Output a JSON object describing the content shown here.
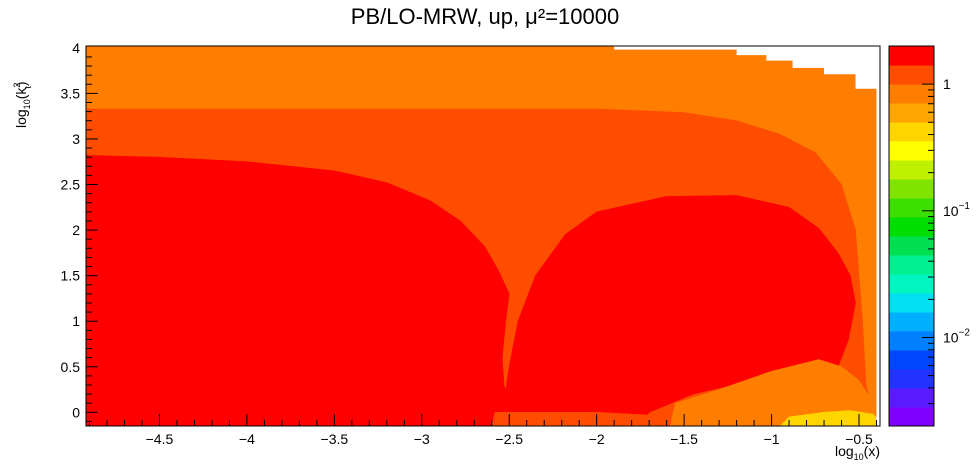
{
  "chart_data": {
    "type": "heatmap",
    "title": "PB/LO-MRW, up, μ²=10000",
    "xlabel_main": "log",
    "xlabel_sub": "10",
    "xlabel_tail": "(x)",
    "ylabel_main": "log",
    "ylabel_sub": "10",
    "ylabel_open": "(k",
    "ylabel_sup": "2",
    "ylabel_subsub": "t",
    "ylabel_close": ")",
    "xlim": [
      -4.92,
      -0.38
    ],
    "ylim": [
      -0.15,
      4.02
    ],
    "x_ticks": [
      {
        "v": -4.5,
        "label": "−4.5"
      },
      {
        "v": -4,
        "label": "−4"
      },
      {
        "v": -3.5,
        "label": "−3.5"
      },
      {
        "v": -3,
        "label": "−3"
      },
      {
        "v": -2.5,
        "label": "−2.5"
      },
      {
        "v": -2,
        "label": "−2"
      },
      {
        "v": -1.5,
        "label": "−1.5"
      },
      {
        "v": -1,
        "label": "−1"
      },
      {
        "v": -0.5,
        "label": "−0.5"
      }
    ],
    "y_ticks": [
      {
        "v": 0,
        "label": "0"
      },
      {
        "v": 0.5,
        "label": "0.5"
      },
      {
        "v": 1,
        "label": "1"
      },
      {
        "v": 1.5,
        "label": "1.5"
      },
      {
        "v": 2,
        "label": "2"
      },
      {
        "v": 2.5,
        "label": "2.5"
      },
      {
        "v": 3,
        "label": "3"
      },
      {
        "v": 3.5,
        "label": "3.5"
      },
      {
        "v": 4,
        "label": "4"
      }
    ],
    "colorbar": {
      "scale": "log",
      "range": [
        0.002,
        2.0
      ],
      "ticks": [
        {
          "v": 1,
          "base": "1",
          "exp": ""
        },
        {
          "v": 0.1,
          "base": "10",
          "exp": "−1"
        },
        {
          "v": 0.01,
          "base": "10",
          "exp": "−2"
        }
      ],
      "colors": [
        "#7f00ff",
        "#5a1cff",
        "#2233ff",
        "#0046ff",
        "#0080ff",
        "#00b0ff",
        "#00e0f0",
        "#00f5c0",
        "#00f090",
        "#00e050",
        "#00dd00",
        "#3ce000",
        "#80e400",
        "#bff000",
        "#ffff00",
        "#ffd500",
        "#ffa500",
        "#ff7e00",
        "#ff4d00",
        "#ff0000"
      ]
    },
    "contours": [
      {
        "level": "0.003",
        "color": "#1e20ff",
        "points": [
          [
            -1.95,
            4.02
          ],
          [
            -1.95,
            3.96
          ],
          [
            -1.18,
            3.96
          ],
          [
            -1.18,
            3.9
          ],
          [
            -1.0,
            3.9
          ],
          [
            -1.0,
            3.83
          ],
          [
            -0.85,
            3.83
          ],
          [
            -0.85,
            3.76
          ],
          [
            -0.67,
            3.76
          ],
          [
            -0.67,
            3.68
          ],
          [
            -0.5,
            3.68
          ],
          [
            -0.5,
            3.5
          ],
          [
            -0.38,
            3.5
          ],
          [
            -0.38,
            4.02
          ]
        ]
      },
      {
        "level": "0.01",
        "color": "#00b0ff",
        "points": [
          [
            -1.95,
            3.96
          ],
          [
            -1.95,
            3.94
          ],
          [
            -1.2,
            3.94
          ],
          [
            -1.2,
            3.88
          ],
          [
            -1.02,
            3.88
          ],
          [
            -1.02,
            3.81
          ],
          [
            -0.87,
            3.81
          ],
          [
            -0.87,
            3.73
          ],
          [
            -0.69,
            3.73
          ],
          [
            -0.69,
            3.64
          ],
          [
            -0.53,
            3.64
          ],
          [
            -0.5,
            3.48
          ],
          [
            -0.38,
            3.46
          ],
          [
            -0.38,
            4.02
          ],
          [
            -1.95,
            4.02
          ]
        ]
      },
      {
        "level": "0.05",
        "color": "#00dd00",
        "points": [
          [
            -4.92,
            3.96
          ],
          [
            -1.98,
            3.96
          ],
          [
            -1.92,
            3.92
          ],
          [
            -1.25,
            3.92
          ],
          [
            -1.05,
            3.86
          ],
          [
            -0.9,
            3.78
          ],
          [
            -0.72,
            3.7
          ],
          [
            -0.57,
            3.58
          ],
          [
            -0.5,
            3.42
          ],
          [
            -0.38,
            3.4
          ],
          [
            -0.38,
            4.02
          ],
          [
            -4.92,
            4.02
          ]
        ]
      },
      {
        "level": "0.1",
        "color": "#bff000",
        "points": [
          [
            -4.92,
            3.9
          ],
          [
            -2.0,
            3.92
          ],
          [
            -1.5,
            3.89
          ],
          [
            -1.2,
            3.85
          ],
          [
            -0.95,
            3.74
          ],
          [
            -0.75,
            3.62
          ],
          [
            -0.6,
            3.5
          ],
          [
            -0.5,
            3.35
          ],
          [
            -0.38,
            3.28
          ],
          [
            -0.38,
            4.02
          ],
          [
            -4.92,
            4.02
          ]
        ]
      },
      {
        "level": "0.2",
        "color": "#ffff00",
        "points": [
          [
            -4.92,
            3.77
          ],
          [
            -3.0,
            3.79
          ],
          [
            -2.0,
            3.8
          ],
          [
            -1.4,
            3.76
          ],
          [
            -1.05,
            3.66
          ],
          [
            -0.82,
            3.52
          ],
          [
            -0.62,
            3.38
          ],
          [
            -0.5,
            3.22
          ],
          [
            -0.43,
            3.0
          ],
          [
            -0.38,
            2.95
          ],
          [
            -0.38,
            4.02
          ],
          [
            -4.92,
            4.02
          ]
        ]
      },
      {
        "level": "0.4",
        "color": "#ffd500",
        "points": [
          [
            -4.92,
            3.58
          ],
          [
            -3.0,
            3.6
          ],
          [
            -2.0,
            3.61
          ],
          [
            -1.4,
            3.57
          ],
          [
            -1.0,
            3.45
          ],
          [
            -0.75,
            3.28
          ],
          [
            -0.58,
            3.1
          ],
          [
            -0.47,
            2.8
          ],
          [
            -0.42,
            2.4
          ],
          [
            -0.38,
            2.3
          ],
          [
            -0.38,
            4.02
          ],
          [
            -4.92,
            4.02
          ]
        ]
      },
      {
        "level": "0.7",
        "color": "#ff7e00",
        "points": [
          [
            -0.38,
            -0.15
          ],
          [
            -0.38,
            4.02
          ],
          [
            -4.92,
            4.02
          ],
          [
            -4.92,
            3.33
          ],
          [
            -2.0,
            3.33
          ],
          [
            -1.5,
            3.29
          ],
          [
            -1.2,
            3.2
          ],
          [
            -0.95,
            3.05
          ],
          [
            -0.75,
            2.85
          ],
          [
            -0.6,
            2.5
          ],
          [
            -0.52,
            2.0
          ],
          [
            -0.5,
            1.5
          ],
          [
            -0.48,
            1.0
          ],
          [
            -0.46,
            0.3
          ],
          [
            -0.42,
            0.0
          ],
          [
            -0.38,
            -0.15
          ]
        ]
      },
      {
        "level": "1",
        "color": "#ff4d00",
        "points": [
          [
            -4.92,
            -0.15
          ],
          [
            -4.92,
            3.33
          ],
          [
            -2.0,
            3.33
          ],
          [
            -1.5,
            3.29
          ],
          [
            -1.2,
            3.2
          ],
          [
            -0.95,
            3.05
          ],
          [
            -0.75,
            2.85
          ],
          [
            -0.6,
            2.5
          ],
          [
            -0.52,
            2.0
          ],
          [
            -0.5,
            1.5
          ],
          [
            -0.48,
            1.0
          ],
          [
            -0.46,
            0.3
          ],
          [
            -0.42,
            0.0
          ],
          [
            -0.38,
            -0.15
          ]
        ]
      },
      {
        "level": "1.4",
        "color": "#ff0000",
        "points": [
          [
            -4.92,
            -0.15
          ],
          [
            -4.92,
            2.82
          ],
          [
            -4.5,
            2.8
          ],
          [
            -4.0,
            2.75
          ],
          [
            -3.5,
            2.65
          ],
          [
            -3.2,
            2.52
          ],
          [
            -2.95,
            2.32
          ],
          [
            -2.78,
            2.1
          ],
          [
            -2.64,
            1.82
          ],
          [
            -2.56,
            1.55
          ],
          [
            -2.5,
            1.3
          ],
          [
            -2.52,
            1.0
          ],
          [
            -2.54,
            0.6
          ],
          [
            -2.53,
            0.3
          ],
          [
            -2.45,
            -0.15
          ]
        ]
      },
      {
        "level": "1.4b",
        "color": "#ff0000",
        "points": [
          [
            -2.55,
            -0.15
          ],
          [
            -2.5,
            0.5
          ],
          [
            -2.45,
            1.0
          ],
          [
            -2.35,
            1.5
          ],
          [
            -2.18,
            1.95
          ],
          [
            -2.0,
            2.2
          ],
          [
            -1.6,
            2.37
          ],
          [
            -1.2,
            2.38
          ],
          [
            -0.9,
            2.25
          ],
          [
            -0.73,
            2.02
          ],
          [
            -0.62,
            1.75
          ],
          [
            -0.55,
            1.5
          ],
          [
            -0.52,
            1.2
          ],
          [
            -0.56,
            0.8
          ],
          [
            -0.62,
            0.5
          ],
          [
            -0.95,
            0.42
          ],
          [
            -1.45,
            0.2
          ],
          [
            -1.7,
            0.0
          ],
          [
            -1.75,
            -0.15
          ]
        ]
      },
      {
        "level": "1.0b",
        "color": "#ff4d00",
        "points": [
          [
            -2.6,
            -0.15
          ],
          [
            -2.58,
            0.0
          ],
          [
            -2.0,
            0.0
          ],
          [
            -1.7,
            -0.03
          ],
          [
            -1.6,
            -0.15
          ]
        ]
      },
      {
        "level": "0.7b",
        "color": "#ff7e00",
        "points": [
          [
            -1.58,
            -0.15
          ],
          [
            -1.55,
            0.1
          ],
          [
            -1.3,
            0.25
          ],
          [
            -1.0,
            0.45
          ],
          [
            -0.73,
            0.58
          ],
          [
            -0.6,
            0.5
          ],
          [
            -0.5,
            0.35
          ],
          [
            -0.45,
            0.2
          ],
          [
            -0.38,
            0.15
          ],
          [
            -0.38,
            -0.15
          ]
        ]
      },
      {
        "level": "0.4b",
        "color": "#ffd500",
        "points": [
          [
            -0.95,
            -0.15
          ],
          [
            -0.9,
            -0.05
          ],
          [
            -0.7,
            0.0
          ],
          [
            -0.55,
            0.02
          ],
          [
            -0.42,
            -0.02
          ],
          [
            -0.38,
            -0.1
          ],
          [
            -0.38,
            -0.15
          ]
        ]
      }
    ]
  }
}
